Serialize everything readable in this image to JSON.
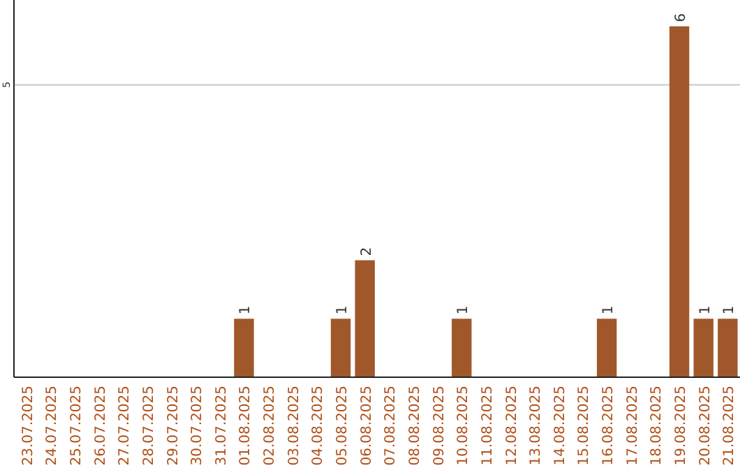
{
  "chart_data": {
    "type": "bar",
    "categories": [
      "23.07.2025",
      "24.07.2025",
      "25.07.2025",
      "26.07.2025",
      "27.07.2025",
      "28.07.2025",
      "29.07.2025",
      "30.07.2025",
      "31.07.2025",
      "01.08.2025",
      "02.08.2025",
      "03.08.2025",
      "04.08.2025",
      "05.08.2025",
      "06.08.2025",
      "07.08.2025",
      "08.08.2025",
      "09.08.2025",
      "10.08.2025",
      "11.08.2025",
      "12.08.2025",
      "13.08.2025",
      "14.08.2025",
      "15.08.2025",
      "16.08.2025",
      "17.08.2025",
      "18.08.2025",
      "19.08.2025",
      "20.08.2025",
      "21.08.2025"
    ],
    "values": [
      0,
      0,
      0,
      0,
      0,
      0,
      0,
      0,
      0,
      1,
      0,
      0,
      0,
      1,
      2,
      0,
      0,
      0,
      1,
      0,
      0,
      0,
      0,
      0,
      1,
      0,
      0,
      6,
      1,
      1
    ],
    "value_labels": [
      null,
      null,
      null,
      null,
      null,
      null,
      null,
      null,
      null,
      "1",
      null,
      null,
      null,
      "1",
      "2",
      null,
      null,
      null,
      "1",
      null,
      null,
      null,
      null,
      null,
      "1",
      null,
      null,
      "6",
      "1",
      "1"
    ],
    "color": "#a0582a",
    "ylim": [
      0,
      6.45
    ],
    "yticks": [
      5
    ],
    "grid": "y"
  }
}
